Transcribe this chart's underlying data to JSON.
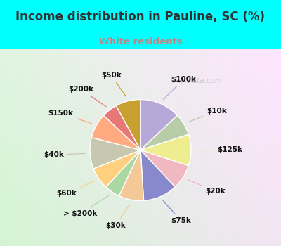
{
  "title": "Income distribution in Pauline, SC (%)",
  "subtitle": "White residents",
  "title_color": "#333333",
  "subtitle_color": "#bb8888",
  "bg_cyan": "#00ffff",
  "watermark": "City-Data.com",
  "labels": [
    "$100k",
    "$10k",
    "$125k",
    "$20k",
    "$75k",
    "$30k",
    "> $200k",
    "$60k",
    "$40k",
    "$150k",
    "$200k",
    "$50k"
  ],
  "values": [
    13,
    7,
    10,
    8,
    11,
    8,
    5,
    7,
    10,
    8,
    5,
    8
  ],
  "colors": [
    "#b8a8d8",
    "#b8cca8",
    "#eeee90",
    "#f0b8c0",
    "#8888cc",
    "#f5c898",
    "#aad8a0",
    "#ffd080",
    "#c8c8b0",
    "#ffaa80",
    "#e87878",
    "#c8a030"
  ],
  "startangle": 90
}
